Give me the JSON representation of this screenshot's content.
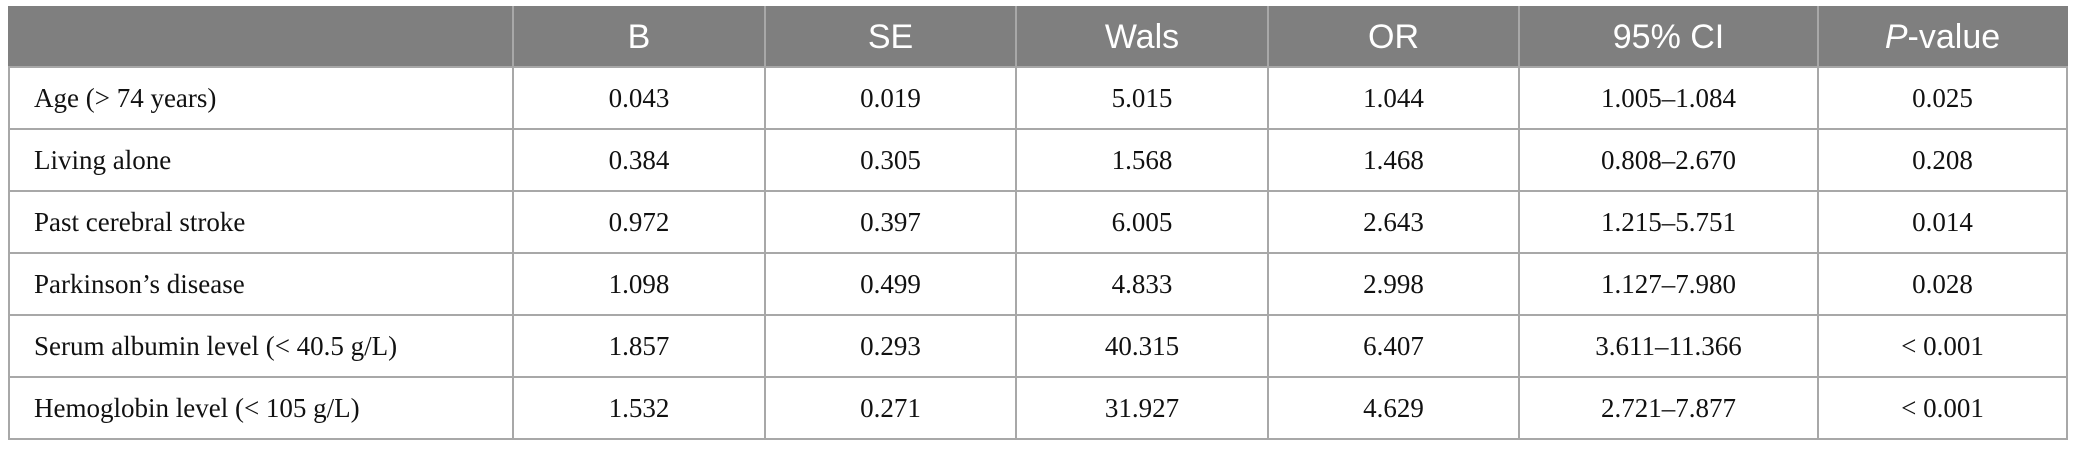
{
  "table": {
    "headers": {
      "col0": "",
      "col1": "B",
      "col2": "SE",
      "col3": "Wals",
      "col4": "OR",
      "col5": "95% CI",
      "col6_italic": "P",
      "col6_rest": "-value"
    },
    "rows": [
      {
        "label": "Age (> 74 years)",
        "b": "0.043",
        "se": "0.019",
        "wals": "5.015",
        "or": "1.044",
        "ci": "1.005–1.084",
        "p": "0.025"
      },
      {
        "label": "Living alone",
        "b": "0.384",
        "se": "0.305",
        "wals": "1.568",
        "or": "1.468",
        "ci": "0.808–2.670",
        "p": "0.208"
      },
      {
        "label": "Past cerebral stroke",
        "b": "0.972",
        "se": "0.397",
        "wals": "6.005",
        "or": "2.643",
        "ci": "1.215–5.751",
        "p": "0.014"
      },
      {
        "label": "Parkinson’s disease",
        "b": "1.098",
        "se": "0.499",
        "wals": "4.833",
        "or": "2.998",
        "ci": "1.127–7.980",
        "p": "0.028"
      },
      {
        "label": "Serum albumin level (< 40.5 g/L)",
        "b": "1.857",
        "se": "0.293",
        "wals": "40.315",
        "or": "6.407",
        "ci": "3.611–11.366",
        "p": "< 0.001"
      },
      {
        "label": "Hemoglobin level (< 105 g/L)",
        "b": "1.532",
        "se": "0.271",
        "wals": "31.927",
        "or": "4.629",
        "ci": "2.721–7.877",
        "p": "< 0.001"
      }
    ]
  },
  "colors": {
    "header_bg": "#7f7f7f",
    "header_text": "#ffffff",
    "grid": "#a8a8a8"
  }
}
